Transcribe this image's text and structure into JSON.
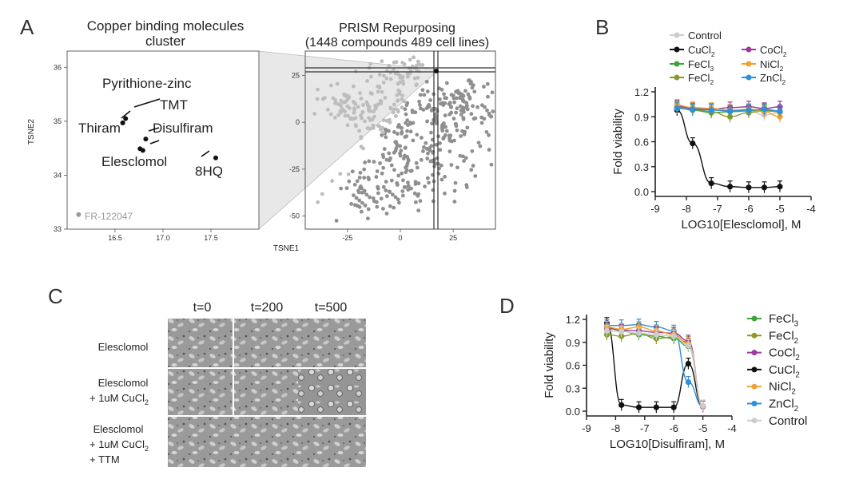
{
  "panels": {
    "a": {
      "letter": "A",
      "left_title_1": "Copper binding molecules",
      "left_title_2": "cluster",
      "right_title_1": "PRISM Repurposing",
      "right_title_2": "(1448 compounds 489 cell lines)",
      "left_x_label": "TSNE1",
      "left_y_label": "TSNE2",
      "left_x_ticks": [
        "16.5",
        "17.0",
        "17.5"
      ],
      "left_y_ticks": [
        "36",
        "35",
        "34",
        "33"
      ],
      "right_x_ticks": [
        "-25",
        "0",
        "25"
      ],
      "right_y_ticks": [
        "25",
        "0",
        "-25",
        "-50"
      ],
      "points": [
        {
          "label": "Pyrithione-zinc",
          "x": 16.61,
          "y": 35.05
        },
        {
          "label": "TMT",
          "x": 16.58,
          "y": 34.97
        },
        {
          "label": "Thiram",
          "x": 16.58,
          "y": 34.97
        },
        {
          "label": "Disulfiram",
          "x": 16.82,
          "y": 34.67
        },
        {
          "label": "Elesclomol",
          "x": 16.76,
          "y": 34.49
        },
        {
          "label": "Elesclomol",
          "x": 16.79,
          "y": 34.46
        },
        {
          "label": "8HQ",
          "x": 17.55,
          "y": 34.32
        },
        {
          "label": "FR-122047",
          "x": 16.12,
          "y": 33.27
        }
      ]
    },
    "b": {
      "letter": "B",
      "y_label": "Fold viability",
      "x_label": "LOG10[Elesclomol], M",
      "x_ticks": [
        "-9",
        "-8",
        "-7",
        "-6",
        "-5",
        "-4"
      ],
      "y_ticks": [
        "0.0",
        "0.3",
        "0.6",
        "0.9",
        "1.2"
      ],
      "legend": [
        {
          "base": "Control",
          "sub": ""
        },
        {
          "base": "CuCl",
          "sub": "2"
        },
        {
          "base": "FeCl",
          "sub": "3"
        },
        {
          "base": "FeCl",
          "sub": "2"
        },
        {
          "base": "CoCl",
          "sub": "2"
        },
        {
          "base": "NiCl",
          "sub": "2"
        },
        {
          "base": "ZnCl",
          "sub": "2"
        }
      ]
    },
    "c": {
      "letter": "C",
      "col_headers": [
        "t=0",
        "t=200",
        "t=500"
      ],
      "row1": "Elesclomol",
      "row2_line1": "Elesclomol",
      "row2_line2_base": "+ 1uM CuCl",
      "row2_line2_sub": "2",
      "row3_line1": "Elesclomol",
      "row3_line2_base": "+ 1uM CuCl",
      "row3_line2_sub": "2",
      "row3_line3": "+ TTM"
    },
    "d": {
      "letter": "D",
      "y_label": "Fold viability",
      "x_label": "LOG10[Disulfiram], M",
      "x_ticks": [
        "-9",
        "-8",
        "-7",
        "-6",
        "-5",
        "-4"
      ],
      "y_ticks": [
        "0.0",
        "0.3",
        "0.6",
        "0.9",
        "1.2"
      ],
      "legend": [
        {
          "base": "FeCl",
          "sub": "3"
        },
        {
          "base": "FeCl",
          "sub": "2"
        },
        {
          "base": "CoCl",
          "sub": "2"
        },
        {
          "base": "CuCl",
          "sub": "2"
        },
        {
          "base": "NiCl",
          "sub": "2"
        },
        {
          "base": "ZnCl",
          "sub": "2"
        },
        {
          "base": "Control",
          "sub": ""
        }
      ]
    }
  },
  "colors": {
    "Control": "#cccccc",
    "CuCl2": "#111111",
    "FeCl3": "#3aa33a",
    "FeCl2": "#8a9a2a",
    "CoCl2": "#9b3aa0",
    "NiCl2": "#f0a030",
    "ZnCl2": "#2e90d8"
  },
  "chart_data": [
    {
      "type": "line",
      "panel": "B",
      "xlabel": "LOG10[Elesclomol], M",
      "ylabel": "Fold viability",
      "xlim": [
        -9,
        -4
      ],
      "ylim": [
        0,
        1.2
      ],
      "x": [
        -8.3,
        -7.8,
        -7.2,
        -6.6,
        -6.0,
        -5.5,
        -5.0
      ],
      "series": [
        {
          "name": "CuCl2",
          "color": "#111111",
          "values": [
            0.98,
            0.58,
            0.1,
            0.06,
            0.05,
            0.05,
            0.06
          ]
        },
        {
          "name": "Control",
          "color": "#cccccc",
          "values": [
            1.0,
            0.98,
            0.99,
            0.97,
            0.98,
            0.92,
            0.95
          ]
        },
        {
          "name": "FeCl3",
          "color": "#3aa33a",
          "values": [
            1.02,
            0.98,
            0.95,
            0.96,
            0.97,
            0.98,
            0.96
          ]
        },
        {
          "name": "FeCl2",
          "color": "#8a9a2a",
          "values": [
            1.01,
            0.99,
            0.96,
            0.9,
            0.95,
            0.97,
            0.96
          ]
        },
        {
          "name": "CoCl2",
          "color": "#9b3aa0",
          "values": [
            1.03,
            1.0,
            0.99,
            1.01,
            1.02,
            1.0,
            1.02
          ]
        },
        {
          "name": "NiCl2",
          "color": "#f0a030",
          "values": [
            1.04,
            1.01,
            1.0,
            0.98,
            0.99,
            0.96,
            0.9
          ]
        },
        {
          "name": "ZnCl2",
          "color": "#2e90d8",
          "values": [
            1.0,
            0.99,
            0.98,
            0.97,
            0.98,
            0.99,
            0.97
          ]
        }
      ]
    },
    {
      "type": "line",
      "panel": "D",
      "xlabel": "LOG10[Disulfiram], M",
      "ylabel": "Fold viability",
      "xlim": [
        -9,
        -4
      ],
      "ylim": [
        0,
        1.2
      ],
      "x": [
        -8.3,
        -7.8,
        -7.2,
        -6.6,
        -6.0,
        -5.5,
        -5.0
      ],
      "series": [
        {
          "name": "CuCl2",
          "color": "#111111",
          "values": [
            1.15,
            0.08,
            0.05,
            0.05,
            0.05,
            0.62,
            0.06
          ]
        },
        {
          "name": "ZnCl2",
          "color": "#2e90d8",
          "values": [
            1.12,
            1.12,
            1.13,
            1.1,
            1.05,
            0.38,
            0.06
          ]
        },
        {
          "name": "FeCl3",
          "color": "#3aa33a",
          "values": [
            1.1,
            1.05,
            1.0,
            0.98,
            0.95,
            0.85,
            0.07
          ]
        },
        {
          "name": "FeCl2",
          "color": "#8a9a2a",
          "values": [
            1.0,
            0.98,
            1.02,
            0.95,
            0.97,
            0.9,
            0.06
          ]
        },
        {
          "name": "CoCl2",
          "color": "#9b3aa0",
          "values": [
            1.08,
            1.06,
            1.05,
            1.03,
            1.02,
            0.92,
            0.06
          ]
        },
        {
          "name": "NiCl2",
          "color": "#f0a030",
          "values": [
            1.1,
            1.07,
            1.1,
            1.05,
            1.0,
            0.88,
            0.07
          ]
        },
        {
          "name": "Control",
          "color": "#cccccc",
          "values": [
            1.05,
            1.04,
            1.02,
            1.0,
            0.98,
            0.86,
            0.07
          ]
        }
      ]
    }
  ]
}
